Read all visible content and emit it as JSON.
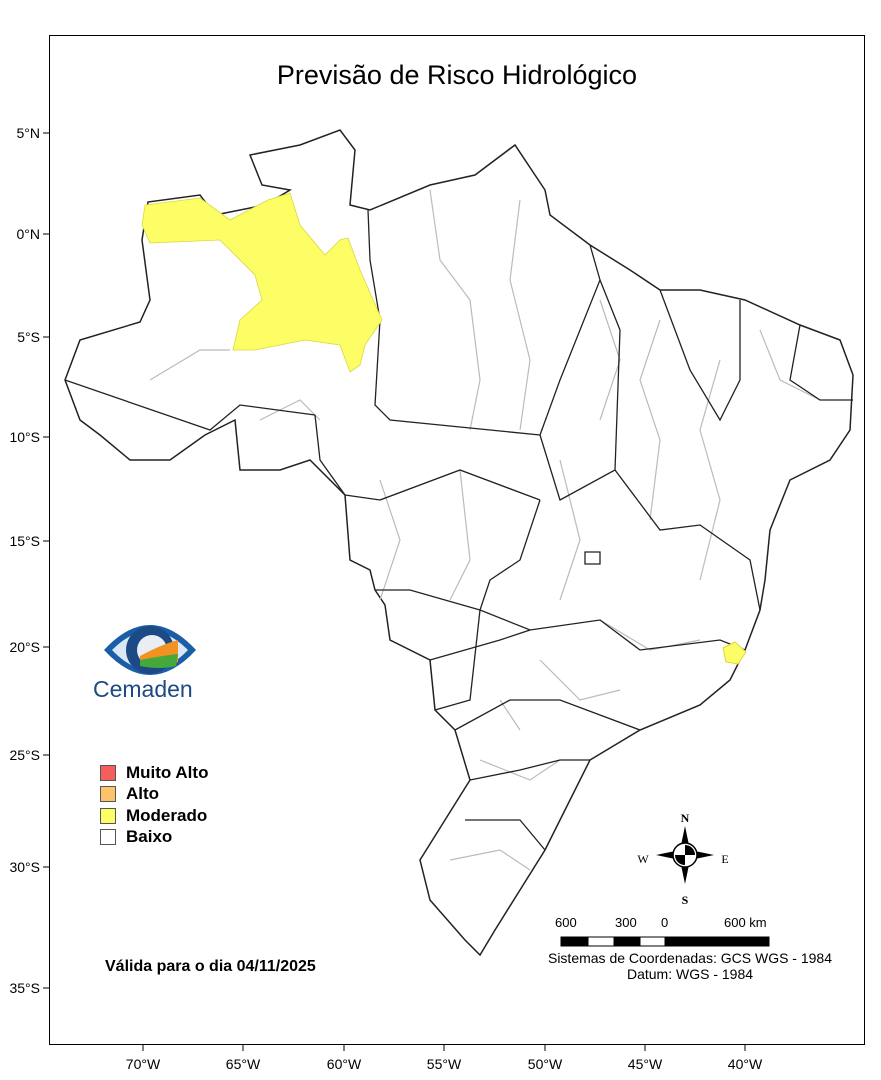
{
  "title": "Previsão de Risco Hidrológico",
  "lat_labels": [
    "5°N",
    "0°N",
    "5°S",
    "10°S",
    "15°S",
    "20°S",
    "25°S",
    "30°S",
    "35°S"
  ],
  "lon_labels": [
    "70°W",
    "65°W",
    "60°W",
    "55°W",
    "50°W",
    "45°W",
    "40°W"
  ],
  "legend": [
    {
      "label": "Muito Alto",
      "color": "#f65e5e"
    },
    {
      "label": "Alto",
      "color": "#fdc36a"
    },
    {
      "label": "Moderado",
      "color": "#fdfd66"
    },
    {
      "label": "Baixo",
      "color": "#ffffff"
    }
  ],
  "logo": "Cemaden",
  "valid_text": "Válida para o dia 04/11/2025",
  "compass": {
    "n": "N",
    "s": "S",
    "e": "E",
    "w": "W"
  },
  "scale_bar": {
    "labels": [
      "600",
      "300",
      "0",
      "600 km"
    ]
  },
  "coord_system": "Sistemas de Coordenadas: GCS WGS - 1984",
  "datum": "Datum: WGS - 1984",
  "colors": {
    "moderate_area": "#fdfd66",
    "state_border": "#222222",
    "basin_border": "#bbbbbb"
  }
}
